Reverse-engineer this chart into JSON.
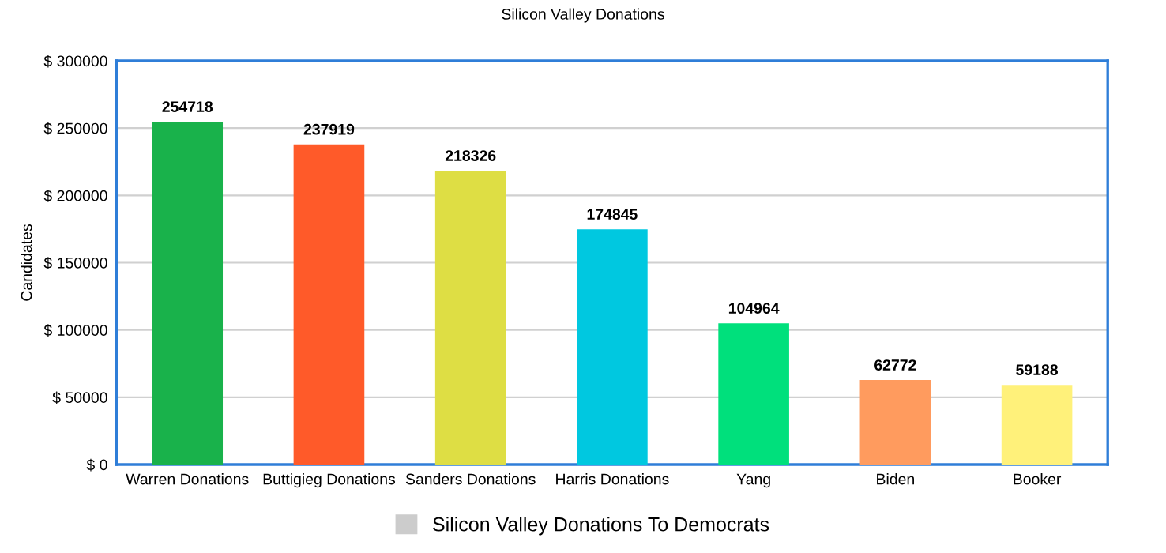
{
  "chart_data": {
    "type": "bar",
    "title": "Silicon Valley Donations",
    "ylabel": "Candidates",
    "categories": [
      "Warren Donations",
      "Buttigieg Donations",
      "Sanders Donations",
      "Harris Donations",
      "Yang",
      "Biden",
      "Booker"
    ],
    "series": [
      {
        "name": "Silicon Valley Donations To Democrats",
        "color": "#cccccc",
        "colors": [
          "#19b24b",
          "#ff5a29",
          "#dede44",
          "#00c8e0",
          "#00e07c",
          "#ff9b5e",
          "#fff17a"
        ],
        "values": [
          254718,
          237919,
          218326,
          174845,
          104964,
          62772,
          59188
        ]
      }
    ],
    "ylim": [
      0,
      300000
    ],
    "yticks": [
      {
        "value": 0,
        "label": "$ 0"
      },
      {
        "value": 50000,
        "label": "$ 50000"
      },
      {
        "value": 100000,
        "label": "$ 100000"
      },
      {
        "value": 150000,
        "label": "$ 150000"
      },
      {
        "value": 200000,
        "label": "$ 200000"
      },
      {
        "value": 250000,
        "label": "$ 250000"
      },
      {
        "value": 300000,
        "label": "$ 300000"
      }
    ],
    "grid": "y",
    "legend": "bottom",
    "data_labels": true
  }
}
